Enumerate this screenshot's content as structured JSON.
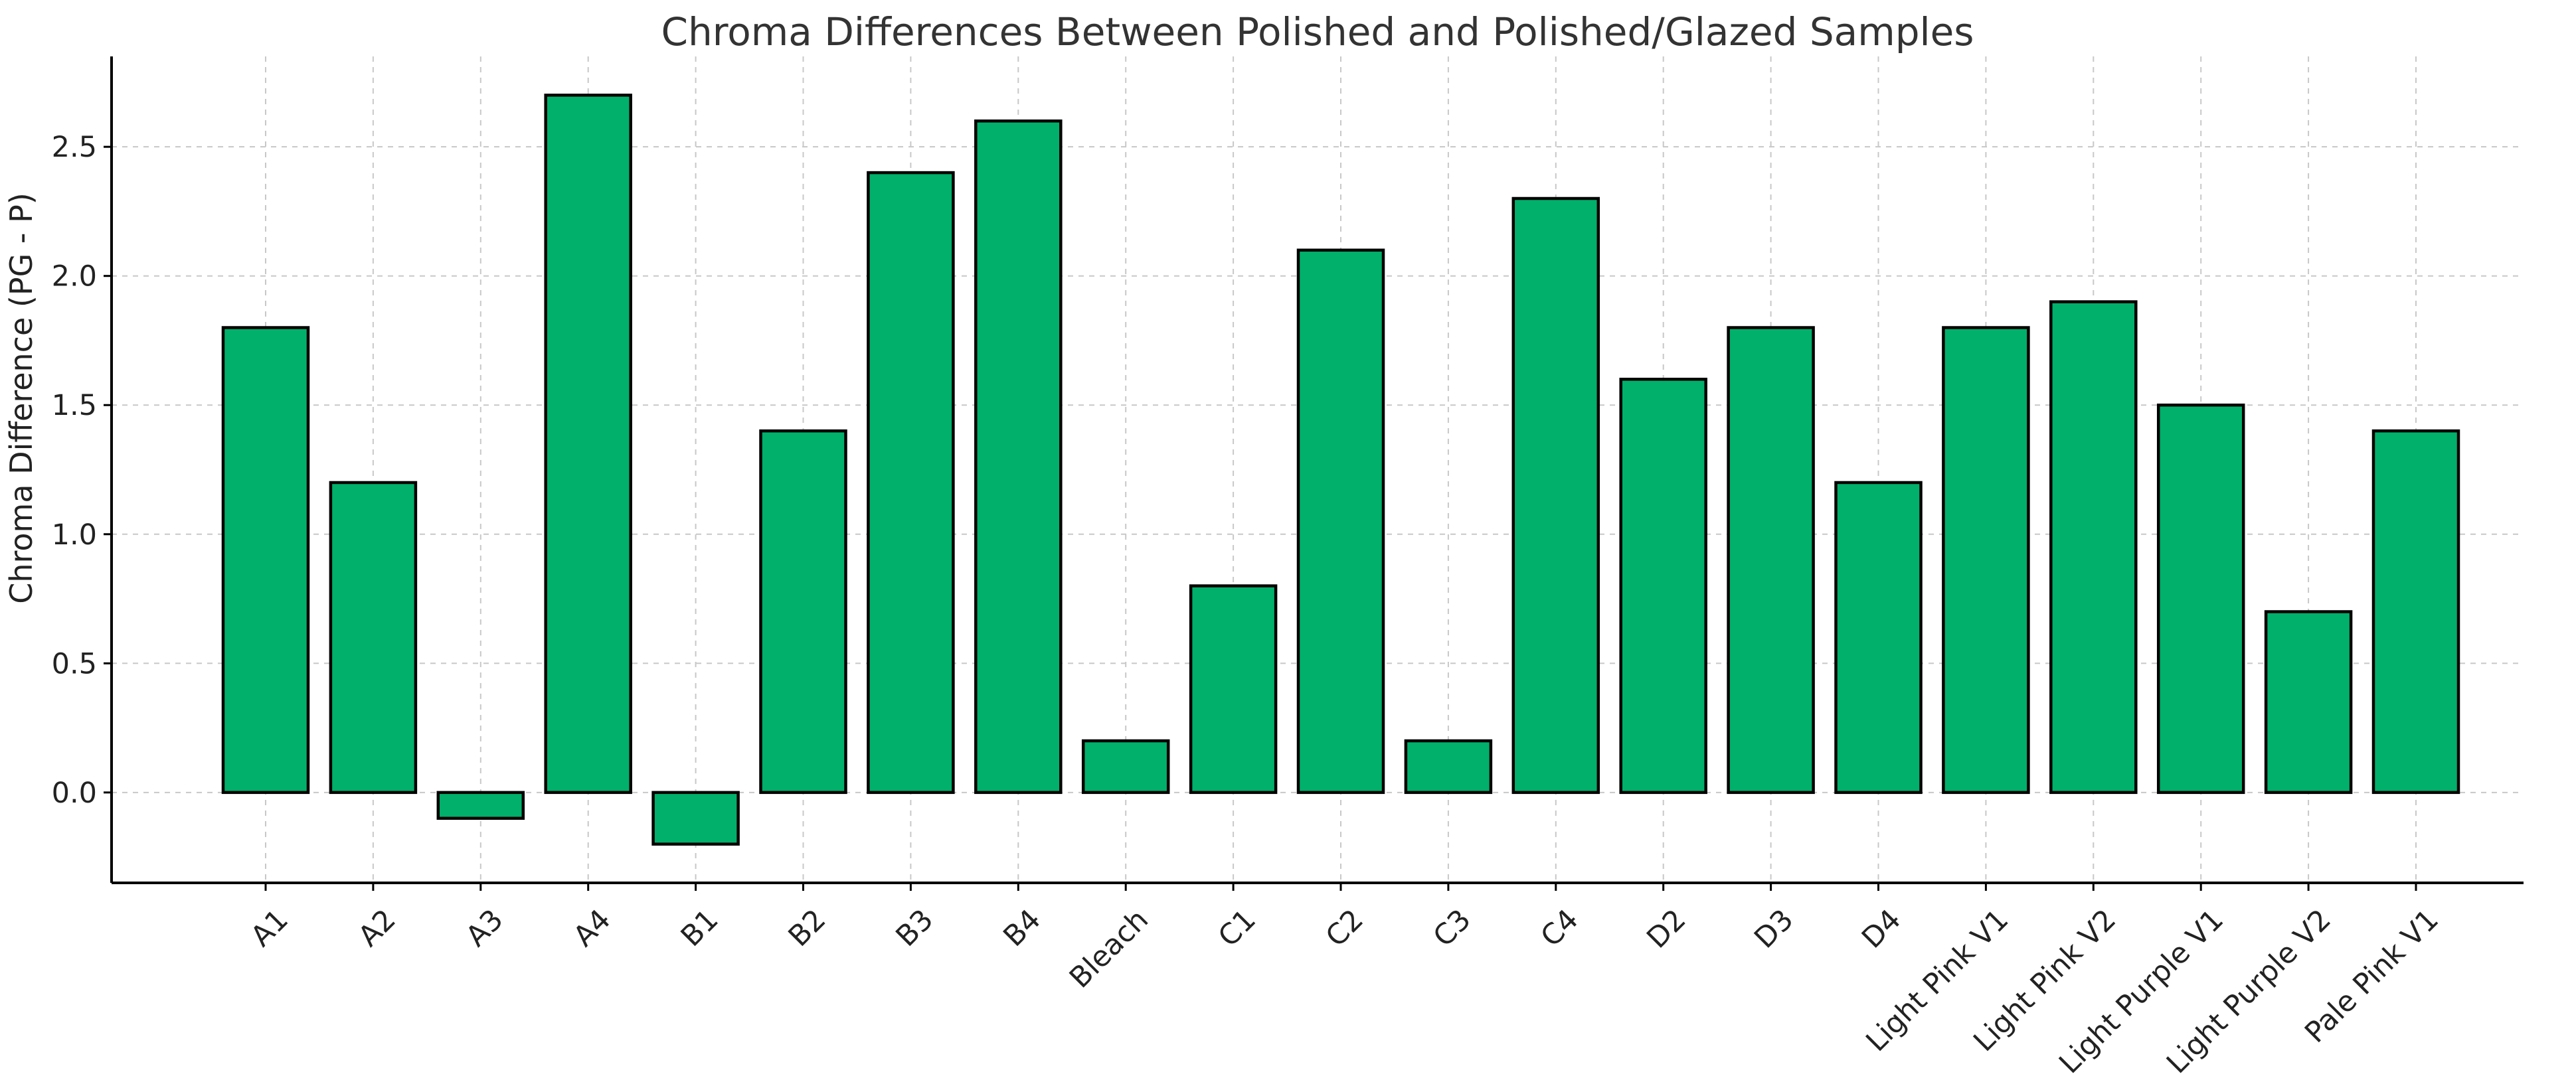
{
  "chart_data": {
    "type": "bar",
    "title": "Chroma Differences Between Polished and Polished/Glazed Samples",
    "xlabel": "",
    "ylabel": "Chroma Difference (PG - P)",
    "ylim": [
      -0.35,
      2.85
    ],
    "yticks": [
      0.0,
      0.5,
      1.0,
      1.5,
      2.0,
      2.5
    ],
    "ytick_labels": [
      "0.0",
      "0.5",
      "1.0",
      "1.5",
      "2.0",
      "2.5"
    ],
    "categories": [
      "A1",
      "A2",
      "A3",
      "A4",
      "B1",
      "B2",
      "B3",
      "B4",
      "Bleach",
      "C1",
      "C2",
      "C3",
      "C4",
      "D2",
      "D3",
      "D4",
      "Light Pink V1",
      "Light Pink V2",
      "Light Purple V1",
      "Light Purple V2",
      "Pale Pink V1"
    ],
    "values": [
      1.8,
      1.2,
      -0.1,
      2.7,
      -0.2,
      1.4,
      2.4,
      2.6,
      0.2,
      0.8,
      2.1,
      0.2,
      2.3,
      1.6,
      1.8,
      1.2,
      1.8,
      1.9,
      1.5,
      0.7,
      1.4
    ],
    "bar_color": "#00b06b",
    "edge_color": "#000000",
    "grid": true,
    "legend": false
  }
}
